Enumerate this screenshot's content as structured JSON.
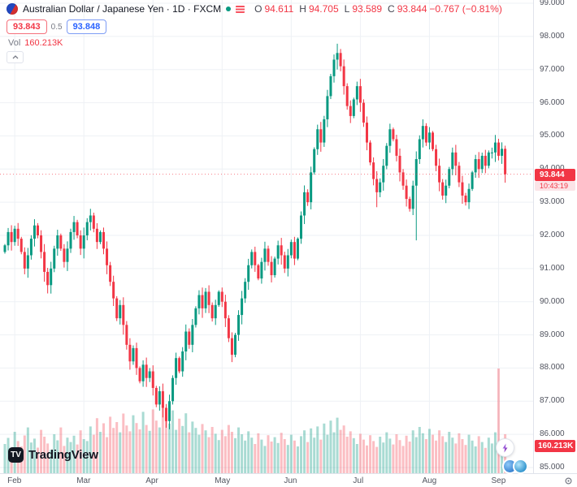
{
  "header": {
    "symbol_title": "Australian Dollar / Japanese Yen · 1D · FXCM",
    "ohlc": {
      "o_label": "O",
      "o": "94.611",
      "h_label": "H",
      "h": "94.705",
      "l_label": "L",
      "l": "93.589",
      "c_label": "C",
      "c": "93.844",
      "change": "−0.767 (−0.81%)"
    },
    "sell_price": "93.843",
    "spread": "0.5",
    "buy_price": "93.848",
    "vol_label": "Vol",
    "vol_value": "160.213K"
  },
  "price_axis": {
    "labels": [
      "99.000",
      "98.000",
      "97.000",
      "96.000",
      "95.000",
      "94.000",
      "93.000",
      "92.000",
      "91.000",
      "90.000",
      "89.000",
      "88.000",
      "87.000",
      "86.000",
      "85.000"
    ],
    "last_price_label": "93.844",
    "countdown": "10:43:19",
    "volume_badge": "160.213K"
  },
  "time_axis": {
    "months": [
      "Feb",
      "Mar",
      "Apr",
      "May",
      "Jun",
      "Jul",
      "Aug",
      "Sep"
    ]
  },
  "logo": {
    "mark": "TV",
    "text": "TradingView"
  },
  "colors": {
    "up": "#089981",
    "down": "#f23645",
    "buy_blue": "#2962ff",
    "grid": "#eef1f5",
    "axis_text": "#50535e"
  },
  "chart_data": {
    "type": "candlestick",
    "title": "Australian Dollar / Japanese Yen",
    "timeframe": "1D",
    "exchange": "FXCM",
    "ylim": [
      85,
      99
    ],
    "y_tick_step": 1,
    "grid": true,
    "months": [
      "Feb",
      "Mar",
      "Apr",
      "May",
      "Jun",
      "Jul",
      "Aug",
      "Sep"
    ],
    "month_indices": [
      3,
      24,
      45,
      66,
      87,
      108,
      129,
      150
    ],
    "closes": [
      91.7,
      92.1,
      91.8,
      92.2,
      91.9,
      91.5,
      91.0,
      91.4,
      91.9,
      92.3,
      92.0,
      91.5,
      90.9,
      90.5,
      91.0,
      91.6,
      92.0,
      91.6,
      91.2,
      91.6,
      92.1,
      92.4,
      92.0,
      91.6,
      92.0,
      92.4,
      92.6,
      92.2,
      91.8,
      92.1,
      91.6,
      91.1,
      90.6,
      90.1,
      89.5,
      89.9,
      89.3,
      88.7,
      88.2,
      88.6,
      88.0,
      87.6,
      88.1,
      87.7,
      87.9,
      87.4,
      86.9,
      87.3,
      86.8,
      86.4,
      87.0,
      87.7,
      88.3,
      87.9,
      88.5,
      89.1,
      88.7,
      89.3,
      89.8,
      90.2,
      89.8,
      90.3,
      89.9,
      89.5,
      89.9,
      90.3,
      90.0,
      89.5,
      88.9,
      88.4,
      89.0,
      89.6,
      90.1,
      90.6,
      91.1,
      91.5,
      91.1,
      90.7,
      91.2,
      91.6,
      91.2,
      90.8,
      91.3,
      91.7,
      91.4,
      91.0,
      91.4,
      91.8,
      91.3,
      91.9,
      92.6,
      93.3,
      93.0,
      93.9,
      94.6,
      95.2,
      94.8,
      95.5,
      96.2,
      96.8,
      97.3,
      97.5,
      97.1,
      96.5,
      95.9,
      95.6,
      96.1,
      96.5,
      96.0,
      95.4,
      94.8,
      94.2,
      93.7,
      93.3,
      93.6,
      94.1,
      94.7,
      95.2,
      94.9,
      94.4,
      93.9,
      93.5,
      93.1,
      92.8,
      93.5,
      94.3,
      94.9,
      95.3,
      94.8,
      95.1,
      94.6,
      94.1,
      93.6,
      93.2,
      93.5,
      94.0,
      94.5,
      94.1,
      93.6,
      93.2,
      93.0,
      93.4,
      93.9,
      94.3,
      94.0,
      94.4,
      94.1,
      94.5,
      94.5,
      94.8,
      94.4,
      94.611,
      93.844
    ],
    "volumes_k": [
      120,
      145,
      98,
      170,
      132,
      110,
      155,
      188,
      126,
      142,
      105,
      178,
      150,
      122,
      96,
      160,
      135,
      188,
      112,
      146,
      128,
      154,
      118,
      176,
      140,
      132,
      192,
      158,
      226,
      170,
      205,
      148,
      232,
      186,
      210,
      168,
      245,
      196,
      172,
      238,
      206,
      180,
      252,
      198,
      174,
      262,
      216,
      188,
      276,
      232,
      204,
      258,
      178,
      224,
      194,
      246,
      168,
      212,
      186,
      158,
      202,
      176,
      148,
      190,
      162,
      136,
      178,
      152,
      198,
      170,
      144,
      188,
      160,
      134,
      172,
      146,
      120,
      164,
      138,
      112,
      156,
      130,
      148,
      124,
      166,
      140,
      116,
      158,
      134,
      110,
      152,
      176,
      128,
      184,
      146,
      192,
      138,
      204,
      158,
      216,
      168,
      228,
      178,
      196,
      150,
      172,
      144,
      120,
      162,
      138,
      114,
      156,
      132,
      108,
      150,
      126,
      168,
      142,
      118,
      160,
      136,
      112,
      154,
      130,
      176,
      148,
      190,
      164,
      140,
      182,
      158,
      134,
      176,
      152,
      128,
      170,
      146,
      122,
      164,
      140,
      116,
      158,
      134,
      110,
      152,
      128,
      104,
      146,
      122,
      168,
      430,
      120,
      160.213
    ],
    "first_open": 91.5,
    "last_candle": {
      "open": 94.611,
      "high": 94.705,
      "low": 93.589,
      "close": 93.844
    },
    "wick_overrides": {
      "13": {
        "low": 90.25
      },
      "49": {
        "low": 86.2
      },
      "101": {
        "high": 97.78
      },
      "113": {
        "low": 92.85
      },
      "125": {
        "low": 91.85
      }
    },
    "last_price": 93.844,
    "up_color": "#089981",
    "down_color": "#f23645",
    "volume_up_color": "rgba(8,153,129,0.35)",
    "volume_down_color": "rgba(242,54,69,0.32)"
  }
}
